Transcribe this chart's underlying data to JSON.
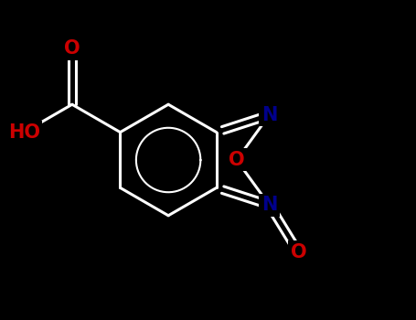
{
  "bg": "#000000",
  "bc": "#ffffff",
  "Nc": "#00008B",
  "Oc": "#cc0000",
  "lw": 2.2,
  "dbo": 0.09,
  "BX": 4.0,
  "BY": 4.5,
  "BL": 1.4,
  "xlim": [
    0.5,
    9.5
  ],
  "ylim": [
    0.5,
    8.5
  ],
  "figw": 4.55,
  "figh": 3.5,
  "dpi": 100,
  "fs": 15
}
